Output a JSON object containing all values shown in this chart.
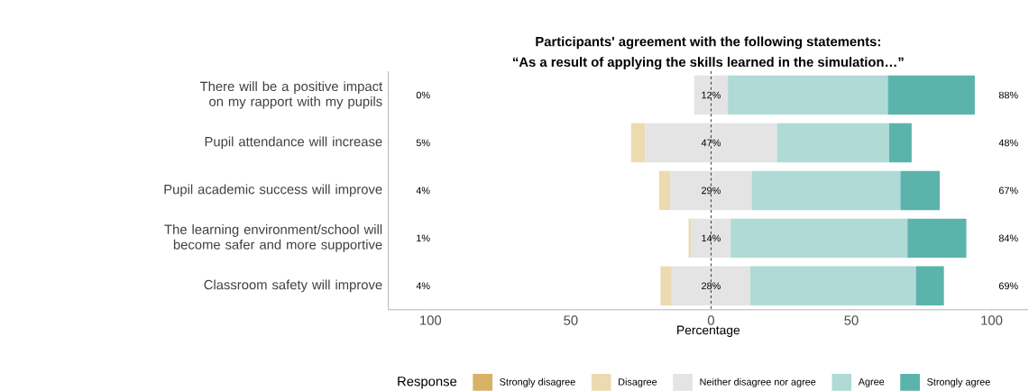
{
  "chart_data": {
    "type": "bar",
    "orientation": "horizontal",
    "title": "Participants' agreement with the following statements:",
    "subtitle": "“As a result of applying the skills learned in the simulation…”",
    "xlabel": "Percentage",
    "legend_title": "Response",
    "legend": "bottom",
    "grid": false,
    "categories": [
      "There will be a positive impact on my rapport with my pupils",
      "Pupil attendance will increase",
      "Pupil academic success will improve",
      "The learning environment/school will become safer and more supportive",
      "Classroom safety will improve"
    ],
    "series": [
      {
        "name": "Strongly disagree",
        "color": "#d8b365",
        "values": [
          0,
          0,
          0,
          0,
          0
        ]
      },
      {
        "name": "Disagree",
        "color": "#ecdbb1",
        "base": [
          null,
          -28.5,
          -18.5,
          -8,
          -18
        ],
        "values": [
          0,
          5,
          4,
          1,
          4
        ]
      },
      {
        "name": "Neither disagree nor agree",
        "color": "#e4e4e4",
        "base": [
          -6,
          -23.5,
          -14.5,
          -7,
          -14
        ],
        "values": [
          12,
          47,
          29,
          14,
          28
        ],
        "value_labels": [
          "12%",
          "47%",
          "29%",
          "14%",
          "28%"
        ]
      },
      {
        "name": "Agree",
        "color": "#afdad6",
        "base": [
          6,
          23.5,
          14.5,
          7,
          14
        ],
        "values": [
          57,
          40,
          53,
          63,
          59
        ]
      },
      {
        "name": "Strongly agree",
        "color": "#5ab4ac",
        "base": [
          63,
          63.5,
          67.5,
          70,
          73
        ],
        "values": [
          31,
          8,
          14,
          21,
          10
        ]
      }
    ],
    "xlim": [
      -115,
      113
    ],
    "xticks": [
      {
        "value": -100,
        "label": "100"
      },
      {
        "value": -50,
        "label": "50"
      },
      0,
      50,
      100
    ],
    "ref_lines": [
      {
        "axis": "x",
        "value": 0,
        "line_style": "dashed"
      }
    ],
    "annotations": [
      "0%",
      "5%",
      "4%",
      "1%",
      "4%",
      "88%",
      "48%",
      "67%",
      "84%",
      "69%"
    ]
  }
}
